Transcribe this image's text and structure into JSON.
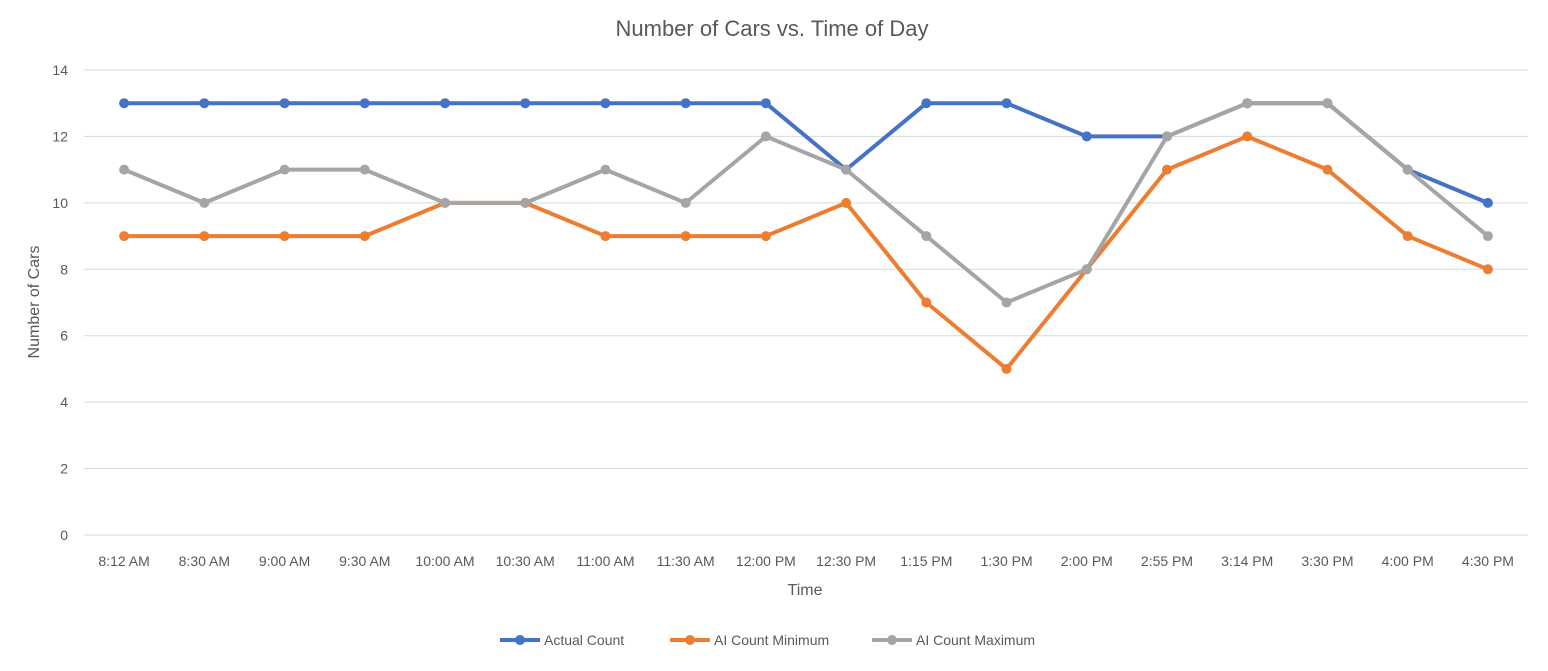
{
  "chart_data": {
    "type": "line",
    "title": "Number of Cars vs. Time of Day",
    "xlabel": "Time",
    "ylabel": "Number of Cars",
    "ylim": [
      0,
      14
    ],
    "yticks": [
      0,
      2,
      4,
      6,
      8,
      10,
      12,
      14
    ],
    "grid": true,
    "legend_position": "bottom",
    "categories": [
      "8:12 AM",
      "8:30 AM",
      "9:00 AM",
      "9:30 AM",
      "10:00 AM",
      "10:30 AM",
      "11:00 AM",
      "11:30 AM",
      "12:00 PM",
      "12:30 PM",
      "1:15 PM",
      "1:30 PM",
      "2:00 PM",
      "2:55 PM",
      "3:14 PM",
      "3:30 PM",
      "4:00 PM",
      "4:30 PM"
    ],
    "series": [
      {
        "name": "Actual Count",
        "color": "#4472C4",
        "values": [
          13,
          13,
          13,
          13,
          13,
          13,
          13,
          13,
          13,
          11,
          13,
          13,
          12,
          12,
          13,
          13,
          11,
          10
        ]
      },
      {
        "name": "AI Count Minimum",
        "color": "#ED7D31",
        "values": [
          9,
          9,
          9,
          9,
          10,
          10,
          9,
          9,
          9,
          10,
          7,
          5,
          8,
          11,
          12,
          11,
          9,
          8
        ]
      },
      {
        "name": "AI Count Maximum",
        "color": "#A5A5A5",
        "values": [
          11,
          10,
          11,
          11,
          10,
          10,
          11,
          10,
          12,
          11,
          9,
          7,
          8,
          12,
          13,
          13,
          11,
          9
        ]
      }
    ]
  }
}
